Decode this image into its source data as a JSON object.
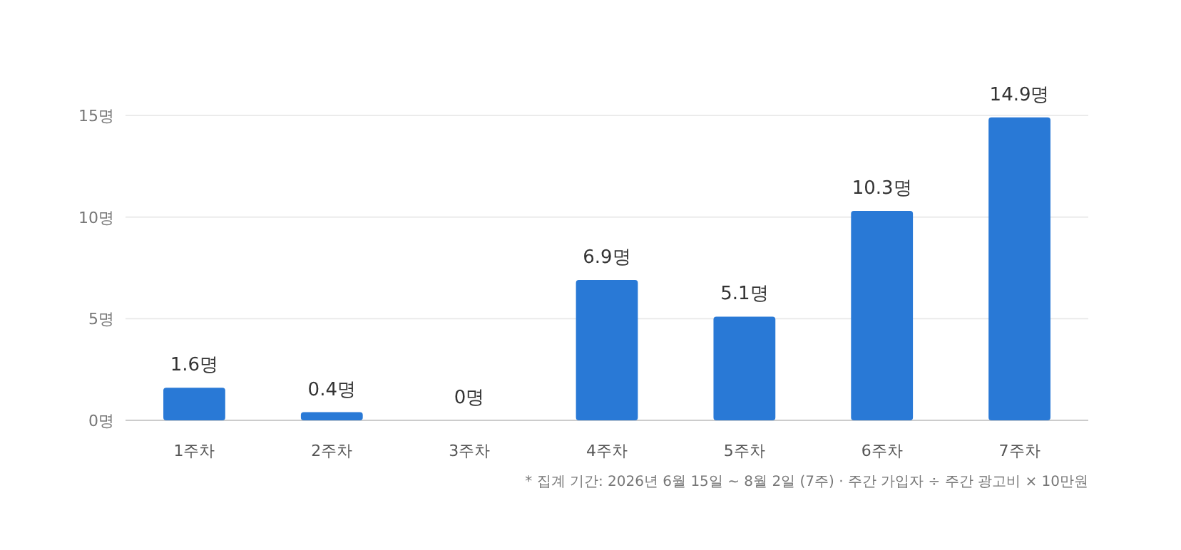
{
  "chart_data": {
    "type": "bar",
    "categories": [
      "1주차",
      "2주차",
      "3주차",
      "4주차",
      "5주차",
      "6주차",
      "7주차"
    ],
    "values": [
      1.6,
      0.4,
      0,
      6.9,
      5.1,
      10.3,
      14.9
    ],
    "value_labels": [
      "1.6명",
      "0.4명",
      "0명",
      "6.9명",
      "5.1명",
      "10.3명",
      "14.9명"
    ],
    "color": "#2979d6",
    "ylim": [
      0,
      15
    ],
    "yticks": [
      {
        "value": 0,
        "label": "0명"
      },
      {
        "value": 5,
        "label": "5명"
      },
      {
        "value": 10,
        "label": "10명"
      },
      {
        "value": 15,
        "label": "15명"
      }
    ],
    "grid": "y",
    "annotations": [
      "* 집계 기간: 2026년 6월 15일 ~ 8월 2일 (7주) · 주간 가입자 ÷ 주간 광고비 × 10만원"
    ]
  }
}
